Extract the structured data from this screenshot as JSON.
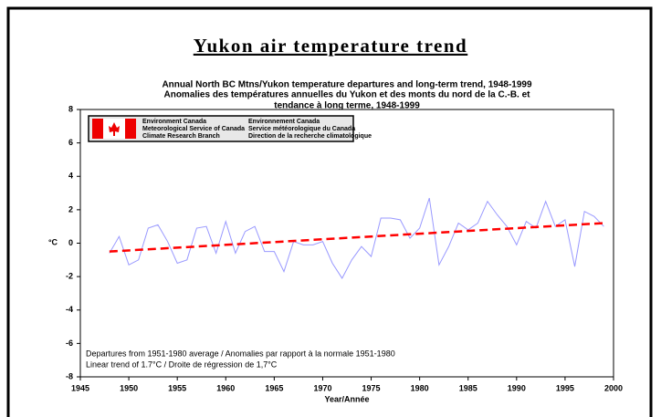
{
  "page_title": "Yukon air temperature trend",
  "chart_data": {
    "type": "line",
    "title_lines": [
      "Annual North BC Mtns/Yukon temperature departures and long-term trend, 1948-1999",
      "Anomalies des températures annuelles du Yukon et  des monts du nord de la C.-B. et",
      "tendance à long terme, 1948-1999"
    ],
    "logo_text": {
      "left": [
        "Environment Canada",
        "Meteorological Service of Canada",
        "Climate Research Branch"
      ],
      "right": [
        "Environnement Canada",
        "Service météorologique du Canada",
        "Direction de la recherche climatologique"
      ]
    },
    "notes": [
      "Departures from 1951-1980 average / Anomalies par rapport à la normale 1951-1980",
      "Linear trend of 1.7°C / Droite de régression de 1,7°C"
    ],
    "x_label": "Year/Année",
    "y_label": "°C",
    "x": [
      1948,
      1949,
      1950,
      1951,
      1952,
      1953,
      1954,
      1955,
      1956,
      1957,
      1958,
      1959,
      1960,
      1961,
      1962,
      1963,
      1964,
      1965,
      1966,
      1967,
      1968,
      1969,
      1970,
      1971,
      1972,
      1973,
      1974,
      1975,
      1976,
      1977,
      1978,
      1979,
      1980,
      1981,
      1982,
      1983,
      1984,
      1985,
      1986,
      1987,
      1988,
      1989,
      1990,
      1991,
      1992,
      1993,
      1994,
      1995,
      1996,
      1997,
      1998,
      1999
    ],
    "series": [
      {
        "color": "#9999ff",
        "values": [
          -0.6,
          0.4,
          -1.3,
          -1.0,
          0.9,
          1.1,
          0.1,
          -1.2,
          -1.0,
          0.9,
          1.0,
          -0.6,
          1.3,
          -0.6,
          0.7,
          1.0,
          -0.5,
          -0.5,
          -1.7,
          0.1,
          -0.1,
          -0.1,
          0.1,
          -1.2,
          -2.1,
          -1.0,
          -0.2,
          -0.8,
          1.5,
          1.5,
          1.4,
          0.3,
          0.9,
          2.7,
          -1.3,
          -0.2,
          1.2,
          0.8,
          1.2,
          2.5,
          1.7,
          1.0,
          -0.1,
          1.3,
          0.9,
          2.5,
          1.0,
          1.4,
          -1.4,
          1.9,
          1.6,
          1.0
        ]
      }
    ],
    "trend": {
      "color": "#ff0000",
      "x": [
        1948,
        1999
      ],
      "values": [
        -0.5,
        1.2
      ]
    },
    "xlim": [
      1945,
      2000
    ],
    "xticks": [
      1945,
      1950,
      1955,
      1960,
      1965,
      1970,
      1975,
      1980,
      1985,
      1990,
      1995,
      2000
    ],
    "ylim": [
      -8,
      8
    ],
    "yticks": [
      -8,
      -6,
      -4,
      -2,
      0,
      2,
      4,
      6,
      8
    ],
    "grid": false
  }
}
